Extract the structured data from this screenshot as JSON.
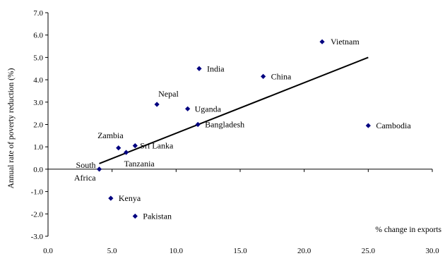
{
  "chart_data": {
    "type": "scatter",
    "title": "",
    "xlabel": "% change in exports",
    "ylabel": "Annual rate of poverty reduction (%)",
    "xlim": [
      0,
      30
    ],
    "ylim": [
      -3,
      7
    ],
    "xticks": [
      "0.0",
      "5.0",
      "10.0",
      "15.0",
      "20.0",
      "25.0",
      "30.0"
    ],
    "yticks": [
      "-3.0",
      "-2.0",
      "-1.0",
      "0.0",
      "1.0",
      "2.0",
      "3.0",
      "4.0",
      "5.0",
      "6.0",
      "7.0"
    ],
    "grid": false,
    "legend": "none",
    "marker_color": "#000080",
    "points": [
      {
        "label": "Vietnam",
        "x": 21.4,
        "y": 5.7
      },
      {
        "label": "India",
        "x": 11.8,
        "y": 4.5
      },
      {
        "label": "China",
        "x": 16.8,
        "y": 4.15
      },
      {
        "label": "Nepal",
        "x": 8.5,
        "y": 2.9
      },
      {
        "label": "Uganda",
        "x": 10.9,
        "y": 2.7
      },
      {
        "label": "Bangladesh",
        "x": 11.7,
        "y": 2.0
      },
      {
        "label": "Cambodia",
        "x": 25.0,
        "y": 1.95
      },
      {
        "label": "Zambia",
        "x": 5.5,
        "y": 0.95
      },
      {
        "label": "Sri Lanka",
        "x": 6.8,
        "y": 1.05
      },
      {
        "label": "Tanzania",
        "x": 6.1,
        "y": 0.75
      },
      {
        "label": "South Africa",
        "x": 4.0,
        "y": 0.0
      },
      {
        "label": "Kenya",
        "x": 4.9,
        "y": -1.3
      },
      {
        "label": "Pakistan",
        "x": 6.8,
        "y": -2.1
      }
    ],
    "trendline": {
      "x": [
        4.0,
        25.0
      ],
      "y": [
        0.25,
        5.0
      ]
    }
  }
}
